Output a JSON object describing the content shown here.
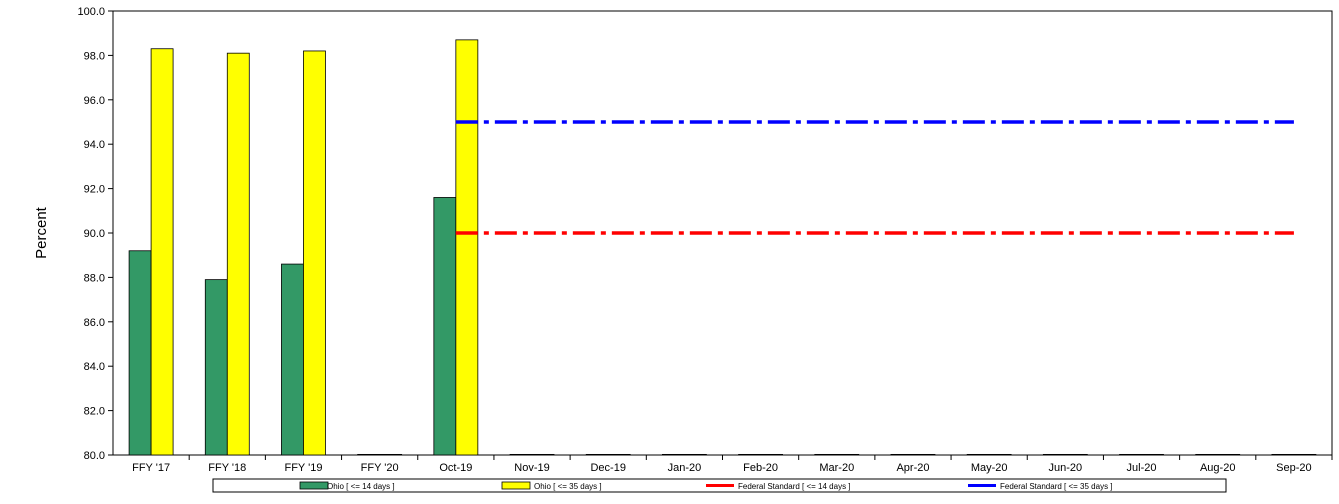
{
  "chart_data": {
    "type": "bar",
    "title": "",
    "xlabel": "",
    "ylabel": "Percent",
    "ylim": [
      80.0,
      100.0
    ],
    "ytick_step": 2.0,
    "ytick_labels": [
      "80.0",
      "82.0",
      "84.0",
      "86.0",
      "88.0",
      "90.0",
      "92.0",
      "94.0",
      "96.0",
      "98.0",
      "100.0"
    ],
    "grid": false,
    "legend_position": "bottom",
    "categories": [
      "FFY '17",
      "FFY '18",
      "FFY '19",
      "FFY '20",
      "Oct-19",
      "Nov-19",
      "Dec-19",
      "Jan-20",
      "Feb-20",
      "Mar-20",
      "Apr-20",
      "May-20",
      "Jun-20",
      "Jul-20",
      "Aug-20",
      "Sep-20"
    ],
    "series": [
      {
        "name": "Ohio [ <= 14 days ]",
        "kind": "bar",
        "color": "#339966",
        "values": [
          89.2,
          87.9,
          88.6,
          80.0,
          91.6,
          80.0,
          80.0,
          80.0,
          80.0,
          80.0,
          80.0,
          80.0,
          80.0,
          80.0,
          80.0,
          80.0
        ]
      },
      {
        "name": "Ohio [ <= 35 days ]",
        "kind": "bar",
        "color": "#ffff00",
        "values": [
          98.3,
          98.1,
          98.2,
          80.0,
          98.7,
          80.0,
          80.0,
          80.0,
          80.0,
          80.0,
          80.0,
          80.0,
          80.0,
          80.0,
          80.0,
          80.0
        ]
      },
      {
        "name": "Federal Standard [ <= 14 days ]",
        "kind": "line",
        "color": "#ff0000",
        "value": 90.0,
        "from_category": "Oct-19",
        "to_category": "Sep-20"
      },
      {
        "name": "Federal Standard [ <= 35 days ]",
        "kind": "line",
        "color": "#0000ff",
        "value": 95.0,
        "from_category": "Oct-19",
        "to_category": "Sep-20"
      }
    ]
  }
}
